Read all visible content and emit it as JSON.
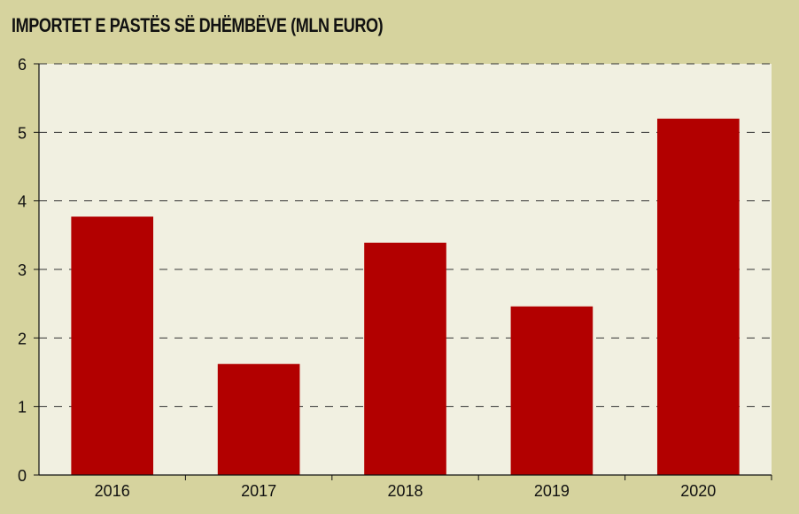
{
  "chart_data": {
    "type": "bar",
    "title": "IMPORTET E PASTËS SË DHËMBËVE (MLN EURO)",
    "categories": [
      "2016",
      "2017",
      "2018",
      "2019",
      "2020"
    ],
    "values": [
      3.77,
      1.62,
      3.39,
      2.46,
      5.2
    ],
    "ylim": [
      0,
      6
    ],
    "yticks": [
      "0",
      "1",
      "2",
      "3",
      "4",
      "5",
      "6"
    ],
    "grid": true,
    "colors": {
      "bar": "#b20000",
      "background": "#d6d39e",
      "plot_background": "#f1f0e1",
      "grid": "#333333"
    }
  }
}
